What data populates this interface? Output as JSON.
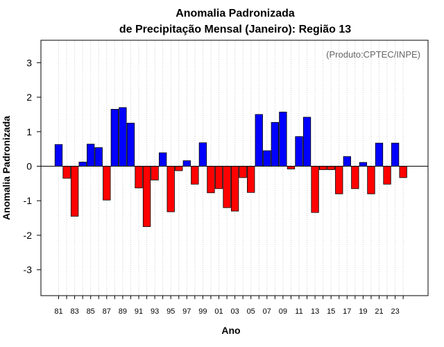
{
  "chart_data": {
    "type": "bar",
    "title": "Anomalia Padronizada",
    "subtitle": "de Precipitação Mensal (Janeiro): Região 13",
    "ylabel": "Anomalia Padronizada",
    "xlabel": "Ano",
    "annotation": "(Produto:CPTEC/INPE)",
    "ylim": [
      -3.75,
      3.65
    ],
    "yticks": [
      -3,
      -2,
      -1,
      0,
      1,
      2,
      3
    ],
    "xtick_labels": [
      "81",
      "83",
      "85",
      "87",
      "89",
      "91",
      "93",
      "95",
      "97",
      "99",
      "01",
      "03",
      "05",
      "07",
      "09",
      "11",
      "13",
      "15",
      "17",
      "19",
      "21",
      "23"
    ],
    "categories": [
      "1981",
      "1982",
      "1983",
      "1984",
      "1985",
      "1986",
      "1987",
      "1988",
      "1989",
      "1990",
      "1991",
      "1992",
      "1993",
      "1994",
      "1995",
      "1996",
      "1997",
      "1998",
      "1999",
      "2000",
      "2001",
      "2002",
      "2003",
      "2004",
      "2005",
      "2006",
      "2007",
      "2008",
      "2009",
      "2010",
      "2011",
      "2012",
      "2013",
      "2014",
      "2015",
      "2016",
      "2017",
      "2018",
      "2019",
      "2020",
      "2021",
      "2022",
      "2023",
      "2024"
    ],
    "values": [
      0.63,
      -0.35,
      -1.45,
      0.12,
      0.64,
      0.54,
      -0.98,
      1.65,
      1.7,
      1.25,
      -0.63,
      -1.75,
      -0.4,
      0.39,
      -1.32,
      -0.13,
      0.16,
      -0.52,
      0.68,
      -0.77,
      -0.65,
      -1.2,
      -1.3,
      -0.33,
      -0.76,
      1.5,
      0.45,
      1.27,
      1.57,
      -0.08,
      0.86,
      1.42,
      -1.34,
      -0.1,
      -0.1,
      -0.8,
      0.28,
      -0.65,
      0.11,
      -0.8,
      0.67,
      -0.52,
      0.67,
      -0.33
    ],
    "colors": {
      "positive": "#0000ff",
      "negative": "#ff0000",
      "gridline": "#cccccc",
      "axis": "#000000"
    },
    "grid": "vertical dotted"
  }
}
